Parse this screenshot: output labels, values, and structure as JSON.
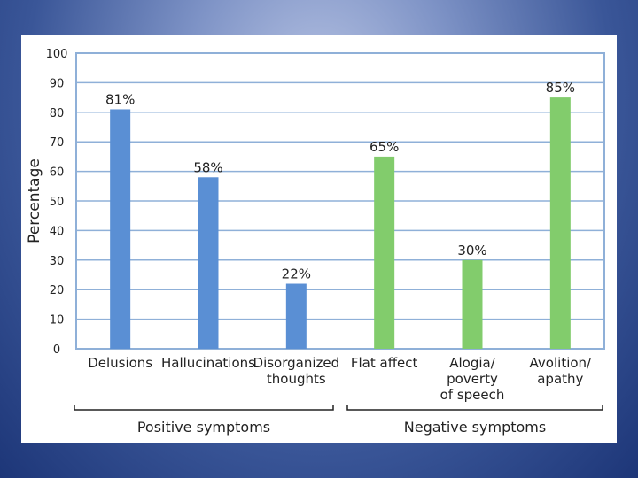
{
  "chart_data": {
    "type": "bar",
    "ylabel": "Percentage",
    "ylim": [
      0,
      100
    ],
    "yticks": [
      "0",
      "10",
      "20",
      "30",
      "40",
      "50",
      "60",
      "70",
      "80",
      "90",
      "100"
    ],
    "grid": true,
    "categories": [
      {
        "label_lines": [
          "Delusions"
        ],
        "group": "positive"
      },
      {
        "label_lines": [
          "Hallucinations"
        ],
        "group": "positive"
      },
      {
        "label_lines": [
          "Disorganized",
          "thoughts"
        ],
        "group": "positive"
      },
      {
        "label_lines": [
          "Flat affect"
        ],
        "group": "negative"
      },
      {
        "label_lines": [
          "Alogia/",
          "poverty",
          "of speech"
        ],
        "group": "negative"
      },
      {
        "label_lines": [
          "Avolition/",
          "apathy"
        ],
        "group": "negative"
      }
    ],
    "values": [
      81,
      58,
      22,
      65,
      30,
      85
    ],
    "data_labels": [
      "81%",
      "58%",
      "22%",
      "65%",
      "30%",
      "85%"
    ],
    "groups": {
      "positive": {
        "label": "Positive symptoms",
        "color": "#5a8fd4"
      },
      "negative": {
        "label": "Negative symptoms",
        "color": "#82cc6c"
      }
    },
    "axis_color": "#8fb0d8"
  }
}
